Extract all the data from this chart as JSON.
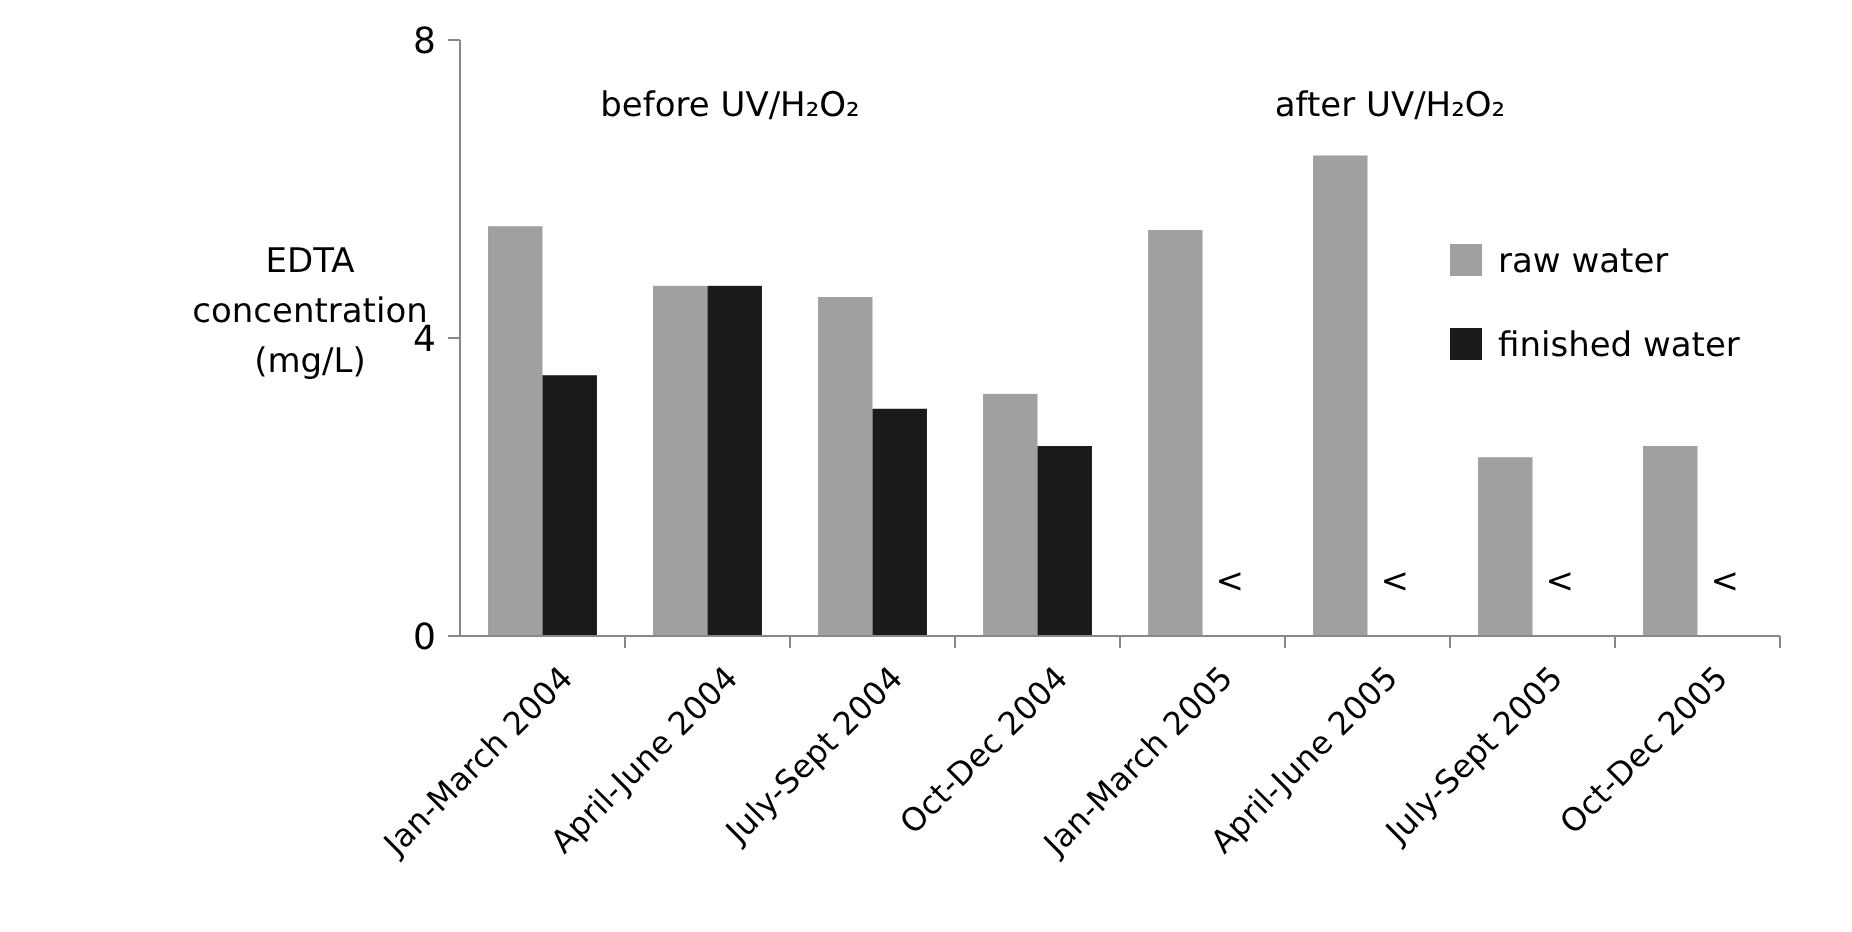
{
  "chart_data": {
    "type": "bar",
    "ylabel": "EDTA concentration (mg/L)",
    "categories": [
      "Jan-March 2004",
      "April-June 2004",
      "July-Sept 2004",
      "Oct-Dec 2004",
      "Jan-March 2005",
      "April-June 2005",
      "July-Sept 2005",
      "Oct-Dec 2005"
    ],
    "series": [
      {
        "name": "raw water",
        "color": "#a0a0a0",
        "values": [
          5.5,
          4.7,
          4.55,
          3.25,
          5.45,
          6.45,
          2.4,
          2.55
        ]
      },
      {
        "name": "finished water",
        "color": "#1a1a1a",
        "values": [
          3.5,
          4.7,
          3.05,
          2.55,
          null,
          null,
          null,
          null
        ],
        "value_labels": [
          null,
          null,
          null,
          null,
          "<",
          "<",
          "<",
          "<"
        ]
      }
    ],
    "ylim": [
      0,
      8
    ],
    "yticks": [
      0,
      4,
      8
    ],
    "grid": false,
    "legend": "right",
    "annotations": [
      "before UV/H₂O₂",
      "after UV/H₂O₂"
    ]
  }
}
